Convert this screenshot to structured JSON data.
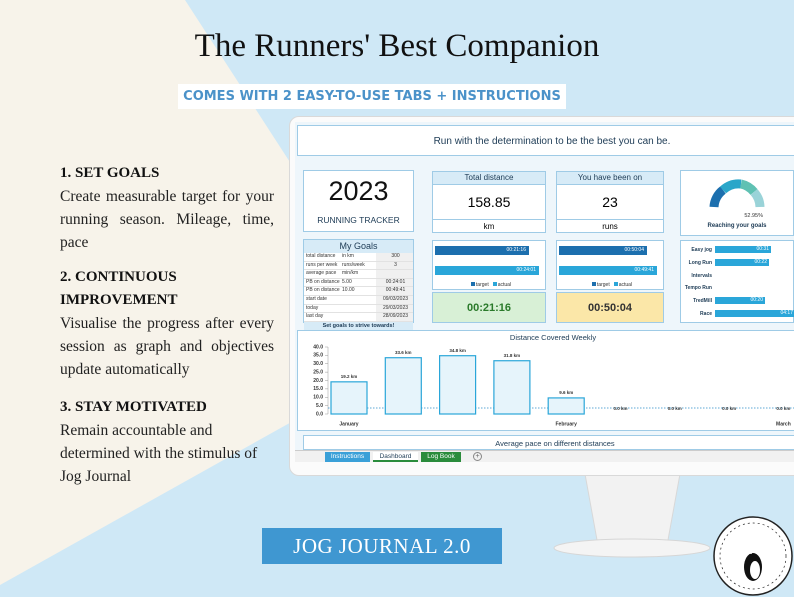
{
  "header": {
    "title": "The Runners' Best Companion",
    "subtitle": "COMES WITH 2 EASY-TO-USE TABS + INSTRUCTIONS"
  },
  "features": [
    {
      "heading": "1. SET GOALS",
      "text": "Create measurable target for your running season. Mileage, time, pace"
    },
    {
      "heading": "2. CONTINUOUS IMPROVEMENT",
      "text": "Visualise the progress after every session as graph and objectives update automatically"
    },
    {
      "heading": "3. STAY MOTIVATED",
      "text": "Remain accountable and determined with the stimulus of Jog Journal"
    }
  ],
  "screen": {
    "banner": "Run with the determination to be the best you can be.",
    "year": "2023",
    "tracker_label": "RUNNING TRACKER",
    "total_distance": {
      "label": "Total distance",
      "value": "158.85",
      "unit": "km"
    },
    "runs": {
      "label": "You have been on",
      "value": "23",
      "unit": "runs"
    },
    "gauge": {
      "percent": "52.95%",
      "label": "Reaching your goals"
    },
    "goals": {
      "title": "My Goals",
      "rows": [
        {
          "label": "total distance",
          "unit": "in km",
          "value": "300"
        },
        {
          "label": "runs per week",
          "unit": "runs/week",
          "value": "3"
        },
        {
          "label": "average pace",
          "unit": "min/km"
        },
        {
          "label": "PB on distance 1",
          "unit": "5.00",
          "value": "00:24:01"
        },
        {
          "label": "PB on distance 2",
          "unit": "10.00",
          "value": "00:49:41"
        },
        {
          "label": "start date",
          "value": "09/03/2023"
        },
        {
          "label": "today",
          "value": "29/03/2023"
        },
        {
          "label": "last day",
          "value": "28/09/2023"
        }
      ],
      "footer": "Set goals to strive towards!"
    },
    "pace_legend": [
      "target",
      "actual"
    ],
    "pace_cards": [
      {
        "target": "00:21:16",
        "actual": "00:24:01",
        "result": "00:21:16"
      },
      {
        "target": "00:50:04",
        "actual": "00:49:41",
        "result": "00:50:04"
      }
    ],
    "run_types": [
      {
        "name": "Easy jog",
        "time": "00:31"
      },
      {
        "name": "Long Run",
        "time": "00:22"
      },
      {
        "name": "Intervals"
      },
      {
        "name": "Tempo Run"
      },
      {
        "name": "TredMill",
        "time": "00:20"
      },
      {
        "name": "Race",
        "time": "04:17"
      }
    ],
    "weekly_chart": {
      "title": "Distance Covered Weekly",
      "ylim": [
        0,
        40
      ],
      "yticks": [
        {
          "value": 0,
          "label": "0.0"
        },
        {
          "value": 5,
          "label": "5.0"
        },
        {
          "value": 10,
          "label": "10.0"
        },
        {
          "value": 15,
          "label": "15.0"
        },
        {
          "value": 20,
          "label": "20.0"
        },
        {
          "value": 25,
          "label": "25.0"
        },
        {
          "value": 30,
          "label": "30.0"
        },
        {
          "value": 35,
          "label": "35.0"
        },
        {
          "value": 40,
          "label": "40.0"
        }
      ],
      "values": [
        19.2,
        33.6,
        34.8,
        31.8,
        9.6,
        0,
        0,
        0,
        0
      ],
      "value_labels": [
        "19.2 km",
        "33.6 km",
        "34.8 km",
        "31.8 km",
        "9.6 km",
        "0.0 km",
        "0.0 km",
        "0.0 km",
        "0.0 km"
      ],
      "months": [
        "January",
        "February",
        "March"
      ]
    },
    "section2": "Average pace on different distances",
    "tabs": [
      "Instructions",
      "Dashboard",
      "Log Book"
    ]
  },
  "product": "JOG JOURNAL 2.0"
}
